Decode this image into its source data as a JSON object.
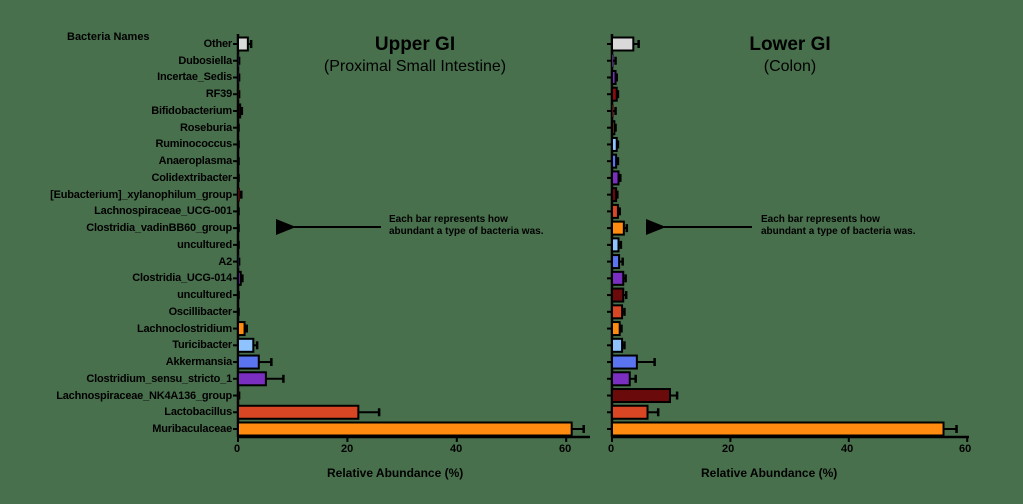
{
  "header": {
    "names_label": "Bacteria Names"
  },
  "panels": [
    {
      "title": "Upper GI",
      "subtitle": "(Proximal Small Intestine)",
      "xlabel": "Relative Abundance (%)",
      "ticks": [
        "0",
        "20",
        "40",
        "60"
      ],
      "note_line1": "Each bar represents how",
      "note_line2": "abundant a type of bacteria was."
    },
    {
      "title": "Lower GI",
      "subtitle": "(Colon)",
      "xlabel": "Relative Abundance (%)",
      "ticks": [
        "0",
        "20",
        "40",
        "60"
      ],
      "note_line1": "Each bar represents how",
      "note_line2": "abundant a type of bacteria was."
    }
  ],
  "categories": [
    "Other",
    "Dubosiella",
    "Incertae_Sedis",
    "RF39",
    "Bifidobacterium",
    "Roseburia",
    "Ruminococcus",
    "Anaeroplasma",
    "Colidextribacter",
    "[Eubacterium]_xylanophilum_group",
    "Lachnospiraceae_UCG-001",
    "Clostridia_vadinBB60_group",
    "uncultured",
    "A2",
    "Clostridia_UCG-014",
    "uncultured",
    "Oscillibacter",
    "Lachnoclostridium",
    "Turicibacter",
    "Akkermansia",
    "Clostridium_sensu_stricto_1",
    "Lachnospiraceae_NK4A136_group",
    "Lactobacillus",
    "Muribaculaceae"
  ],
  "colors": [
    "#d9d9d9",
    "#7a2fc0",
    "#7a2fc0",
    "#8b0d0d",
    "#8b0d0d",
    "#e06a20",
    "#8fc3ff",
    "#5b74f0",
    "#7a2fc0",
    "#6a0a0a",
    "#d84624",
    "#ff8c10",
    "#8fc3ff",
    "#5b74f0",
    "#7a2fc0",
    "#6a0a0a",
    "#d84624",
    "#ff8c10",
    "#8fc3ff",
    "#5b74f0",
    "#7a2fc0",
    "#6a0a0a",
    "#d84624",
    "#ff8c10"
  ],
  "chart_data": [
    {
      "type": "bar",
      "orientation": "horizontal",
      "title": "Upper GI (Proximal Small Intestine)",
      "xlabel": "Relative Abundance (%)",
      "ylabel": "Bacteria Names",
      "xlim": [
        0,
        65
      ],
      "xticks": [
        0,
        20,
        40,
        60
      ],
      "categories": [
        "Other",
        "Dubosiella",
        "Incertae_Sedis",
        "RF39",
        "Bifidobacterium",
        "Roseburia",
        "Ruminococcus",
        "Anaeroplasma",
        "Colidextribacter",
        "[Eubacterium]_xylanophilum_group",
        "Lachnospiraceae_UCG-001",
        "Clostridia_vadinBB60_group",
        "uncultured",
        "A2",
        "Clostridia_UCG-014",
        "uncultured",
        "Oscillibacter",
        "Lachnoclostridium",
        "Turicibacter",
        "Akkermansia",
        "Clostridium_sensu_stricto_1",
        "Lachnospiraceae_NK4A136_group",
        "Lactobacillus",
        "Muribaculaceae"
      ],
      "values": [
        1.8,
        0.1,
        0.1,
        0.1,
        0.4,
        0.05,
        0.05,
        0.05,
        0.05,
        0.3,
        0.05,
        0.05,
        0.05,
        0.1,
        0.5,
        0.05,
        0.05,
        1.2,
        2.8,
        3.8,
        5.1,
        0.1,
        22.0,
        61.0
      ],
      "errors": [
        0.6,
        0.1,
        0.1,
        0.1,
        0.3,
        0.05,
        0.05,
        0.05,
        0.05,
        0.3,
        0.05,
        0.05,
        0.05,
        0.1,
        0.3,
        0.05,
        0.05,
        0.4,
        0.7,
        2.3,
        3.2,
        0.1,
        3.8,
        2.2
      ]
    },
    {
      "type": "bar",
      "orientation": "horizontal",
      "title": "Lower GI (Colon)",
      "xlabel": "Relative Abundance (%)",
      "ylabel": "Bacteria Names",
      "xlim": [
        0,
        60
      ],
      "xticks": [
        0,
        20,
        40,
        60
      ],
      "categories": [
        "Other",
        "Dubosiella",
        "Incertae_Sedis",
        "RF39",
        "Bifidobacterium",
        "Roseburia",
        "Ruminococcus",
        "Anaeroplasma",
        "Colidextribacter",
        "[Eubacterium]_xylanophilum_group",
        "Lachnospiraceae_UCG-001",
        "Clostridia_vadinBB60_group",
        "uncultured",
        "A2",
        "Clostridia_UCG-014",
        "uncultured",
        "Oscillibacter",
        "Lachnoclostridium",
        "Turicibacter",
        "Akkermansia",
        "Clostridium_sensu_stricto_1",
        "Lachnospiraceae_NK4A136_group",
        "Lactobacillus",
        "Muribaculaceae"
      ],
      "values": [
        3.6,
        0.2,
        0.6,
        0.8,
        0.2,
        0.4,
        0.8,
        0.7,
        1.1,
        0.7,
        1.0,
        2.0,
        1.1,
        1.2,
        1.9,
        1.9,
        1.7,
        1.3,
        1.7,
        4.2,
        3.0,
        9.8,
        6.0,
        56.0
      ],
      "errors": [
        0.9,
        0.4,
        0.2,
        0.2,
        0.4,
        0.2,
        0.2,
        0.3,
        0.3,
        0.2,
        0.3,
        0.5,
        0.4,
        0.6,
        0.4,
        0.5,
        0.4,
        0.3,
        0.4,
        3.0,
        1.0,
        1.2,
        1.8,
        2.2
      ]
    }
  ]
}
